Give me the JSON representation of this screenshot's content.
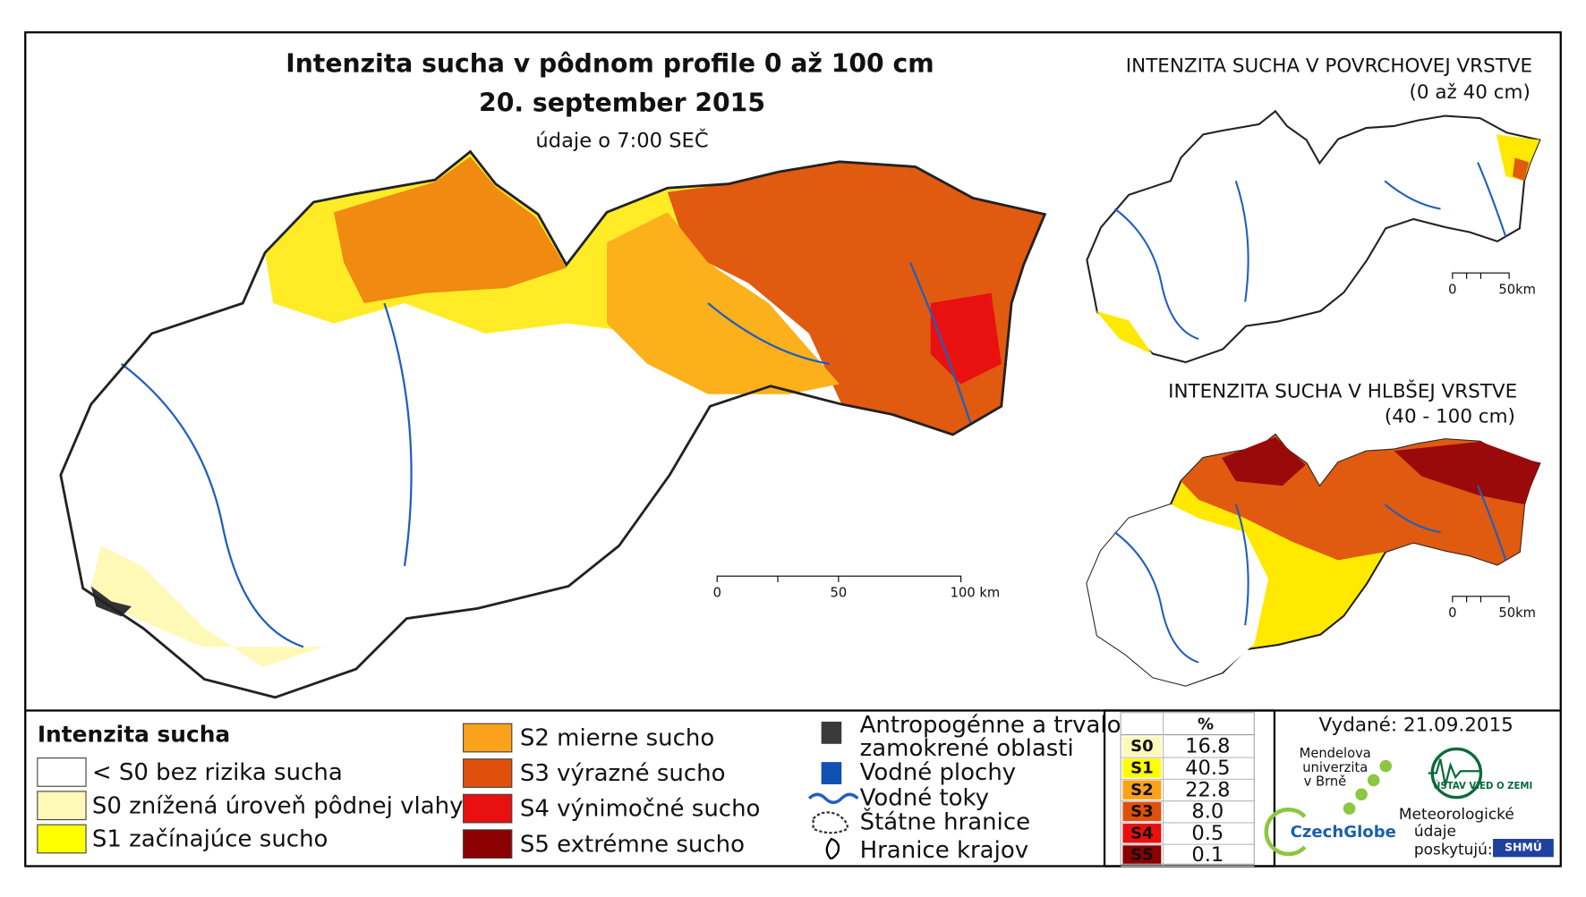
{
  "header": {
    "title": "Intenzita sucha v pôdnom profile 0 až 100 cm",
    "date": "20. september 2015",
    "note": "údaje o 7:00 SEČ"
  },
  "inset_top": {
    "title": "INTENZITA SUCHA V POVRCHOVEJ VRSTVE",
    "subtitle": "(0 až 40 cm)",
    "scale": [
      "0",
      "50km"
    ]
  },
  "inset_bottom": {
    "title": "INTENZITA SUCHA V HLBŠEJ VRSTVE",
    "subtitle": "(40 - 100 cm)",
    "scale": [
      "0",
      "50km"
    ]
  },
  "main_scale": [
    "0",
    "50",
    "100 km"
  ],
  "legend": {
    "title": "Intenzita sucha",
    "items": [
      {
        "label": "< S0 bez rizika sucha",
        "color": "#ffffff"
      },
      {
        "label": "S0 znížená úroveň pôdnej vlahy",
        "color": "#fff9b8"
      },
      {
        "label": "S1 začínajúce sucho",
        "color": "#ffff00"
      },
      {
        "label": "S2 mierne sucho",
        "color": "#fba21c"
      },
      {
        "label": "S3 výrazné sucho",
        "color": "#e0500c"
      },
      {
        "label": "S4 výnimočné sucho",
        "color": "#e81010"
      },
      {
        "label": "S5 extrémne sucho",
        "color": "#8b0000"
      }
    ]
  },
  "symbols": [
    [
      "Antropogénne a trvalo",
      "zamokrené oblasti"
    ],
    "Vodné plochy",
    "Vodné toky",
    "Štátne hranice",
    "Hranice krajov"
  ],
  "table": {
    "header": "%",
    "rows": [
      {
        "class": "S0",
        "value": 16.8,
        "color": "#fff9b8"
      },
      {
        "class": "S1",
        "value": 40.5,
        "color": "#ffff00"
      },
      {
        "class": "S2",
        "value": 22.8,
        "color": "#fba21c"
      },
      {
        "class": "S3",
        "value": 8.0,
        "value_label": "8.0",
        "color": "#e0500c"
      },
      {
        "class": "S4",
        "value": 0.5,
        "color": "#e81010"
      },
      {
        "class": "S5",
        "value": 0.1,
        "color": "#8b0000"
      }
    ]
  },
  "footer": {
    "issued": "Vydané: 21.09.2015",
    "logos": [
      [
        "Mendelova",
        "univerzita",
        "v Brně"
      ],
      "CzechGlobe",
      "ÚSTAV VIED O ZEMI",
      "SHMÚ"
    ],
    "provider": [
      "Meteorologické",
      "údaje",
      "poskytujú:"
    ]
  }
}
